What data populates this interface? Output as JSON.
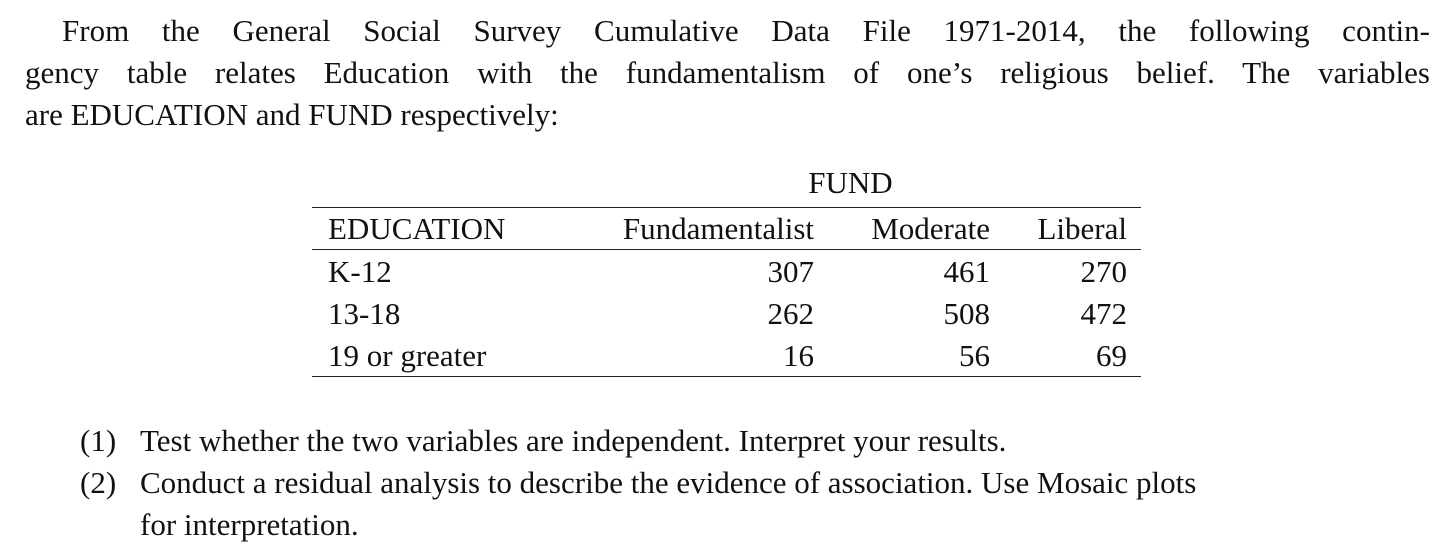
{
  "paragraph": {
    "lines": [
      "From the General Social Survey Cumulative Data File 1971-2014, the following contin-",
      "gency table relates Education with the fundamentalism of one’s religious belief. The variables",
      "are EDUCATION and FUND respectively:"
    ]
  },
  "table": {
    "caption": "FUND",
    "header": [
      "EDUCATION",
      "Fundamentalist",
      "Moderate",
      "Liberal"
    ],
    "rows": [
      [
        "K-12",
        307,
        461,
        270
      ],
      [
        "13-18",
        262,
        508,
        472
      ],
      [
        "19 or greater",
        16,
        56,
        69
      ]
    ]
  },
  "questions": [
    {
      "number": "(1)",
      "lines": [
        "Test whether the two variables are independent. Interpret your results."
      ]
    },
    {
      "number": "(2)",
      "lines": [
        "Conduct a residual analysis to describe the evidence of association. Use Mosaic plots",
        "for interpretation."
      ]
    }
  ]
}
